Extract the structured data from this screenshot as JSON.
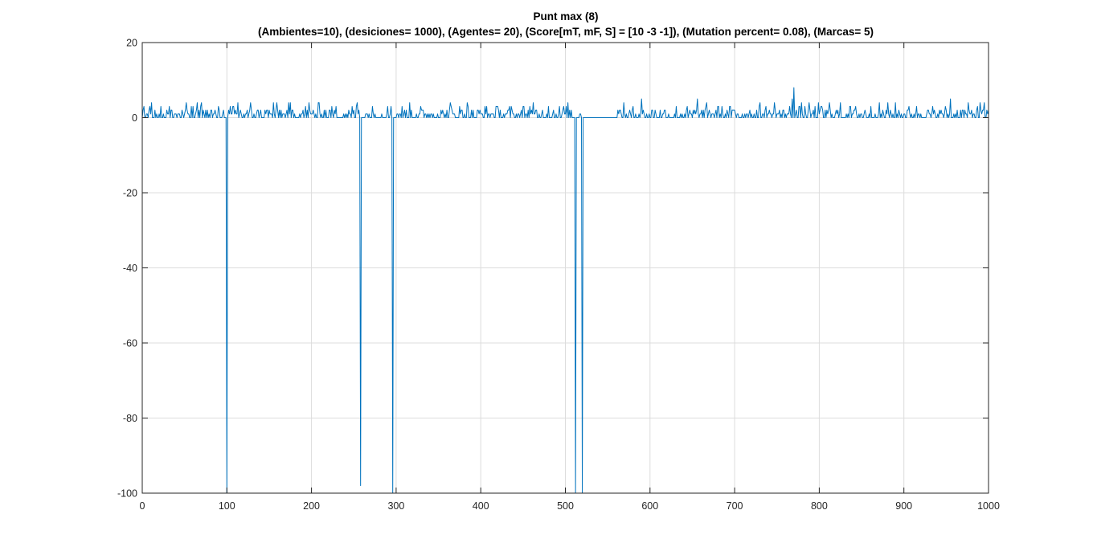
{
  "chart_data": {
    "type": "line",
    "title": "Punt max (8)",
    "subtitle": "(Ambientes=10),  (desiciones= 1000), (Agentes= 20), (Score[mT, mF, S] = [10  -3  -1]), (Mutation percent= 0.08), (Marcas= 5)",
    "xlabel": "",
    "ylabel": "",
    "xlim": [
      0,
      1000
    ],
    "ylim": [
      -100,
      20
    ],
    "xticks": [
      "0",
      "100",
      "200",
      "300",
      "400",
      "500",
      "600",
      "700",
      "800",
      "900",
      "1000"
    ],
    "yticks": [
      "20",
      "0",
      "-20",
      "-40",
      "-60",
      "-80",
      "-100"
    ],
    "grid": true,
    "series": [
      {
        "name": "Punt max",
        "color": "#0072BD",
        "baseline_noise_max": 4,
        "seed": 8,
        "peaks": [
          {
            "x": 2,
            "y": 3
          },
          {
            "x": 58,
            "y": 3
          },
          {
            "x": 70,
            "y": 4
          },
          {
            "x": 113,
            "y": 4
          },
          {
            "x": 128,
            "y": 4
          },
          {
            "x": 155,
            "y": 4
          },
          {
            "x": 197,
            "y": 4
          },
          {
            "x": 254,
            "y": 4
          },
          {
            "x": 290,
            "y": 3
          },
          {
            "x": 364,
            "y": 4
          },
          {
            "x": 384,
            "y": 4
          },
          {
            "x": 458,
            "y": 3
          },
          {
            "x": 480,
            "y": 3
          },
          {
            "x": 590,
            "y": 5
          },
          {
            "x": 656,
            "y": 5
          },
          {
            "x": 747,
            "y": 4
          },
          {
            "x": 770,
            "y": 8
          },
          {
            "x": 768,
            "y": 5
          },
          {
            "x": 812,
            "y": 4
          },
          {
            "x": 955,
            "y": 5
          },
          {
            "x": 990,
            "y": 4
          }
        ],
        "dips": [
          {
            "x": 100,
            "y": -100
          },
          {
            "x": 258,
            "y": -98
          },
          {
            "x": 296,
            "y": -100
          },
          {
            "x": 512,
            "y": -100
          },
          {
            "x": 520,
            "y": -100
          }
        ],
        "flat_segments": [
          [
            522,
            560
          ]
        ]
      }
    ]
  }
}
